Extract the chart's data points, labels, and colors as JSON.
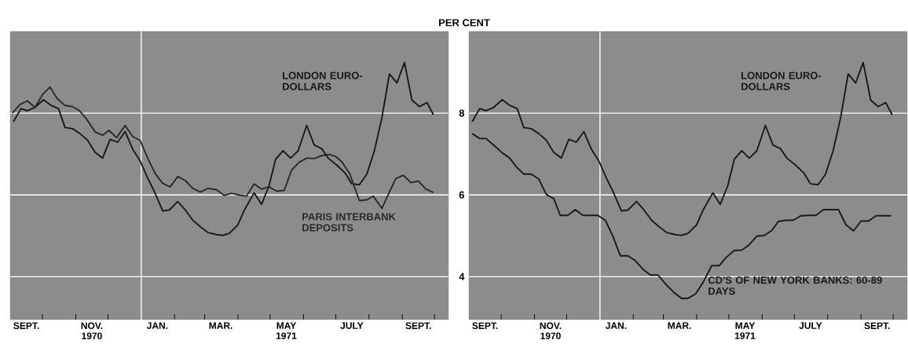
{
  "chart_data": [
    {
      "type": "line",
      "xlim": [
        "1970-09-01",
        "1971-10-14"
      ],
      "ylim": [
        2.95,
        10
      ],
      "yticks": [
        4,
        6,
        8
      ],
      "grid": "y",
      "tick_labels": "x",
      "xticks": [
        {
          "value": "1970-10-01",
          "label": null
        },
        {
          "value": "1970-11-01",
          "label": null
        },
        {
          "value": "1970-12-01",
          "label": null
        },
        {
          "value": "1971-02-01",
          "label": null
        },
        {
          "value": "1971-03-01",
          "label": null
        },
        {
          "value": "1971-04-01",
          "label": null
        },
        {
          "value": "1971-05-01",
          "label": null
        },
        {
          "value": "1971-06-01",
          "label": null
        },
        {
          "value": "1971-07-01",
          "label": null
        },
        {
          "value": "1971-08-01",
          "label": null
        },
        {
          "value": "1971-09-01",
          "label": null
        },
        {
          "value": "1971-10-01",
          "label": null
        },
        {
          "value": "1970-09-16",
          "label": "SEPT."
        },
        {
          "value": "1970-11-16",
          "label": "NOV. 1970"
        },
        {
          "value": "1971-01-16",
          "label": "JAN."
        },
        {
          "value": "1971-03-16",
          "label": "MAR."
        },
        {
          "value": "1971-05-16",
          "label": "MAY 1971"
        },
        {
          "value": "1971-07-16",
          "label": "JULY"
        },
        {
          "value": "1971-09-16",
          "label": "SEPT."
        }
      ],
      "ref_lines": [
        {
          "axis": "x",
          "value": "1971-01-01",
          "color": "#ffffff"
        }
      ],
      "series": [
        {
          "name": "LONDON EURO-DOLLARS",
          "color": "#1a1a1a",
          "x": [
            "1970-09-04",
            "1970-09-11",
            "1970-09-17",
            "1970-09-24",
            "1970-10-02",
            "1970-10-09",
            "1970-10-16",
            "1970-10-22",
            "1970-10-29",
            "1970-11-05",
            "1970-11-12",
            "1970-11-19",
            "1970-11-26",
            "1970-12-03",
            "1970-12-10",
            "1970-12-17",
            "1970-12-24",
            "1970-12-31",
            "1971-01-07",
            "1971-01-13",
            "1971-01-21",
            "1971-01-27",
            "1971-02-04",
            "1971-02-11",
            "1971-02-18",
            "1971-02-25",
            "1971-03-04",
            "1971-03-12",
            "1971-03-18",
            "1971-03-24",
            "1971-04-01",
            "1971-04-07",
            "1971-04-16",
            "1971-04-23",
            "1971-04-30",
            "1971-05-06",
            "1971-05-13",
            "1971-05-20",
            "1971-05-27",
            "1971-06-04",
            "1971-06-11",
            "1971-06-18",
            "1971-06-24",
            "1971-07-02",
            "1971-07-10",
            "1971-07-16",
            "1971-07-23",
            "1971-07-30",
            "1971-08-06",
            "1971-08-13",
            "1971-08-20",
            "1971-08-27",
            "1971-09-03",
            "1971-09-10",
            "1971-09-17",
            "1971-09-24",
            "1971-09-30"
          ],
          "values": [
            7.79,
            8.11,
            8.06,
            8.14,
            8.33,
            8.19,
            8.11,
            7.65,
            7.62,
            7.5,
            7.34,
            7.04,
            6.9,
            7.36,
            7.29,
            7.55,
            7.12,
            6.83,
            6.41,
            6.09,
            5.61,
            5.63,
            5.84,
            5.63,
            5.38,
            5.22,
            5.08,
            5.03,
            5.01,
            5.06,
            5.27,
            5.63,
            6.05,
            5.77,
            6.23,
            6.87,
            7.08,
            6.9,
            7.08,
            7.7,
            7.22,
            7.13,
            6.9,
            6.73,
            6.53,
            6.27,
            6.25,
            6.51,
            7.08,
            7.89,
            8.96,
            8.74,
            9.24,
            8.32,
            8.16,
            8.26,
            7.96
          ]
        },
        {
          "name": "PARIS INTERBANK DEPOSITS",
          "color": "#2a2a2a",
          "x": [
            "1970-09-03",
            "1970-09-10",
            "1970-09-17",
            "1970-09-24",
            "1970-10-01",
            "1970-10-08",
            "1970-10-15",
            "1970-10-22",
            "1970-10-29",
            "1970-11-04",
            "1970-11-11",
            "1970-11-19",
            "1970-11-26",
            "1970-12-02",
            "1970-12-09",
            "1970-12-17",
            "1970-12-24",
            "1970-12-31",
            "1971-01-07",
            "1971-01-14",
            "1971-01-21",
            "1971-01-28",
            "1971-02-04",
            "1971-02-11",
            "1971-02-18",
            "1971-02-25",
            "1971-03-04",
            "1971-03-12",
            "1971-03-19",
            "1971-03-26",
            "1971-04-02",
            "1971-04-09",
            "1971-04-16",
            "1971-04-23",
            "1971-04-30",
            "1971-05-07",
            "1971-05-14",
            "1971-05-21",
            "1971-05-28",
            "1971-06-04",
            "1971-06-11",
            "1971-06-18",
            "1971-06-25",
            "1971-07-01",
            "1971-07-07",
            "1971-07-14",
            "1971-07-23",
            "1971-07-30",
            "1971-08-05",
            "1971-08-13",
            "1971-08-20",
            "1971-08-26",
            "1971-09-02",
            "1971-09-09",
            "1971-09-16",
            "1971-09-23",
            "1971-09-30"
          ],
          "values": [
            8.0,
            8.21,
            8.3,
            8.14,
            8.45,
            8.64,
            8.35,
            8.19,
            8.16,
            8.07,
            7.86,
            7.54,
            7.46,
            7.58,
            7.4,
            7.7,
            7.43,
            7.33,
            6.9,
            6.52,
            6.28,
            6.2,
            6.45,
            6.35,
            6.16,
            6.07,
            6.16,
            6.13,
            5.99,
            6.04,
            6.0,
            5.97,
            6.27,
            6.14,
            6.2,
            6.09,
            6.11,
            6.61,
            6.8,
            6.9,
            6.89,
            6.96,
            6.99,
            6.94,
            6.8,
            6.52,
            5.86,
            5.88,
            5.97,
            5.67,
            6.07,
            6.4,
            6.48,
            6.3,
            6.34,
            6.14,
            6.06
          ]
        }
      ]
    },
    {
      "type": "line",
      "xlim": [
        "1970-09-01",
        "1971-10-14"
      ],
      "ylim": [
        2.95,
        10
      ],
      "yticks": [
        4,
        6,
        8
      ],
      "grid": "y",
      "ylabel": "PER CENT",
      "xticks": [
        {
          "value": "1970-10-01",
          "label": null
        },
        {
          "value": "1970-11-01",
          "label": null
        },
        {
          "value": "1970-12-01",
          "label": null
        },
        {
          "value": "1971-02-01",
          "label": null
        },
        {
          "value": "1971-03-01",
          "label": null
        },
        {
          "value": "1971-04-01",
          "label": null
        },
        {
          "value": "1971-05-01",
          "label": null
        },
        {
          "value": "1971-06-01",
          "label": null
        },
        {
          "value": "1971-07-01",
          "label": null
        },
        {
          "value": "1971-08-01",
          "label": null
        },
        {
          "value": "1971-09-01",
          "label": null
        },
        {
          "value": "1971-10-01",
          "label": null
        },
        {
          "value": "1970-09-16",
          "label": "SEPT."
        },
        {
          "value": "1970-11-16",
          "label": "NOV. 1970"
        },
        {
          "value": "1971-01-16",
          "label": "JAN."
        },
        {
          "value": "1971-03-16",
          "label": "MAR."
        },
        {
          "value": "1971-05-16",
          "label": "MAY 1971"
        },
        {
          "value": "1971-07-16",
          "label": "JULY"
        },
        {
          "value": "1971-09-16",
          "label": "SEPT."
        }
      ],
      "ref_lines": [
        {
          "axis": "x",
          "value": "1971-01-01",
          "color": "#ffffff"
        }
      ],
      "series": [
        {
          "name": "LONDON EURO-DOLLARS",
          "color": "#1a1a1a",
          "x": [
            "1970-09-04",
            "1970-09-11",
            "1970-09-17",
            "1970-09-24",
            "1970-10-02",
            "1970-10-09",
            "1970-10-16",
            "1970-10-22",
            "1970-10-29",
            "1970-11-05",
            "1970-11-12",
            "1970-11-19",
            "1970-11-26",
            "1970-12-03",
            "1970-12-10",
            "1970-12-17",
            "1970-12-24",
            "1970-12-31",
            "1971-01-07",
            "1971-01-13",
            "1971-01-21",
            "1971-01-27",
            "1971-02-04",
            "1971-02-11",
            "1971-02-18",
            "1971-02-25",
            "1971-03-04",
            "1971-03-12",
            "1971-03-18",
            "1971-03-24",
            "1971-04-01",
            "1971-04-07",
            "1971-04-16",
            "1971-04-23",
            "1971-04-30",
            "1971-05-06",
            "1971-05-13",
            "1971-05-20",
            "1971-05-27",
            "1971-06-04",
            "1971-06-11",
            "1971-06-18",
            "1971-06-24",
            "1971-07-02",
            "1971-07-10",
            "1971-07-16",
            "1971-07-23",
            "1971-07-30",
            "1971-08-06",
            "1971-08-13",
            "1971-08-20",
            "1971-08-27",
            "1971-09-03",
            "1971-09-10",
            "1971-09-17",
            "1971-09-24",
            "1971-09-30"
          ],
          "values": [
            7.79,
            8.11,
            8.06,
            8.14,
            8.33,
            8.19,
            8.11,
            7.65,
            7.62,
            7.5,
            7.34,
            7.04,
            6.9,
            7.36,
            7.29,
            7.55,
            7.12,
            6.83,
            6.41,
            6.09,
            5.61,
            5.63,
            5.84,
            5.63,
            5.38,
            5.22,
            5.08,
            5.03,
            5.01,
            5.06,
            5.27,
            5.63,
            6.05,
            5.77,
            6.23,
            6.87,
            7.08,
            6.9,
            7.08,
            7.7,
            7.22,
            7.13,
            6.9,
            6.73,
            6.53,
            6.27,
            6.25,
            6.51,
            7.08,
            7.89,
            8.96,
            8.74,
            9.24,
            8.32,
            8.16,
            8.26,
            7.96
          ]
        },
        {
          "name": "CD'S OF NEW YORK BANKS: 60-89 DAYS",
          "color": "#1a1a1a",
          "x": [
            "1970-09-04",
            "1970-09-11",
            "1970-09-17",
            "1970-09-24",
            "1970-10-02",
            "1970-10-09",
            "1970-10-15",
            "1970-10-22",
            "1970-10-29",
            "1970-11-05",
            "1970-11-12",
            "1970-11-19",
            "1970-11-25",
            "1970-12-02",
            "1970-12-09",
            "1970-12-16",
            "1970-12-23",
            "1970-12-30",
            "1971-01-06",
            "1971-01-13",
            "1971-01-20",
            "1971-01-27",
            "1971-02-03",
            "1971-02-10",
            "1971-02-17",
            "1971-02-24",
            "1971-03-03",
            "1971-03-11",
            "1971-03-18",
            "1971-03-24",
            "1971-03-31",
            "1971-04-07",
            "1971-04-15",
            "1971-04-22",
            "1971-04-28",
            "1971-05-06",
            "1971-05-13",
            "1971-05-19",
            "1971-05-27",
            "1971-06-03",
            "1971-06-10",
            "1971-06-16",
            "1971-06-23",
            "1971-06-30",
            "1971-07-07",
            "1971-07-14",
            "1971-07-21",
            "1971-07-28",
            "1971-08-04",
            "1971-08-11",
            "1971-08-18",
            "1971-08-25",
            "1971-09-01",
            "1971-09-08",
            "1971-09-15",
            "1971-09-22",
            "1971-09-29"
          ],
          "values": [
            7.5,
            7.38,
            7.38,
            7.22,
            7.03,
            6.9,
            6.69,
            6.51,
            6.51,
            6.39,
            6.01,
            5.91,
            5.5,
            5.5,
            5.64,
            5.5,
            5.5,
            5.5,
            5.38,
            4.99,
            4.51,
            4.51,
            4.39,
            4.18,
            4.04,
            4.04,
            3.82,
            3.61,
            3.47,
            3.47,
            3.58,
            3.86,
            4.27,
            4.27,
            4.46,
            4.64,
            4.65,
            4.76,
            4.99,
            5.01,
            5.13,
            5.35,
            5.38,
            5.38,
            5.49,
            5.5,
            5.5,
            5.64,
            5.64,
            5.64,
            5.27,
            5.12,
            5.36,
            5.36,
            5.49,
            5.49,
            5.49
          ]
        }
      ]
    }
  ]
}
